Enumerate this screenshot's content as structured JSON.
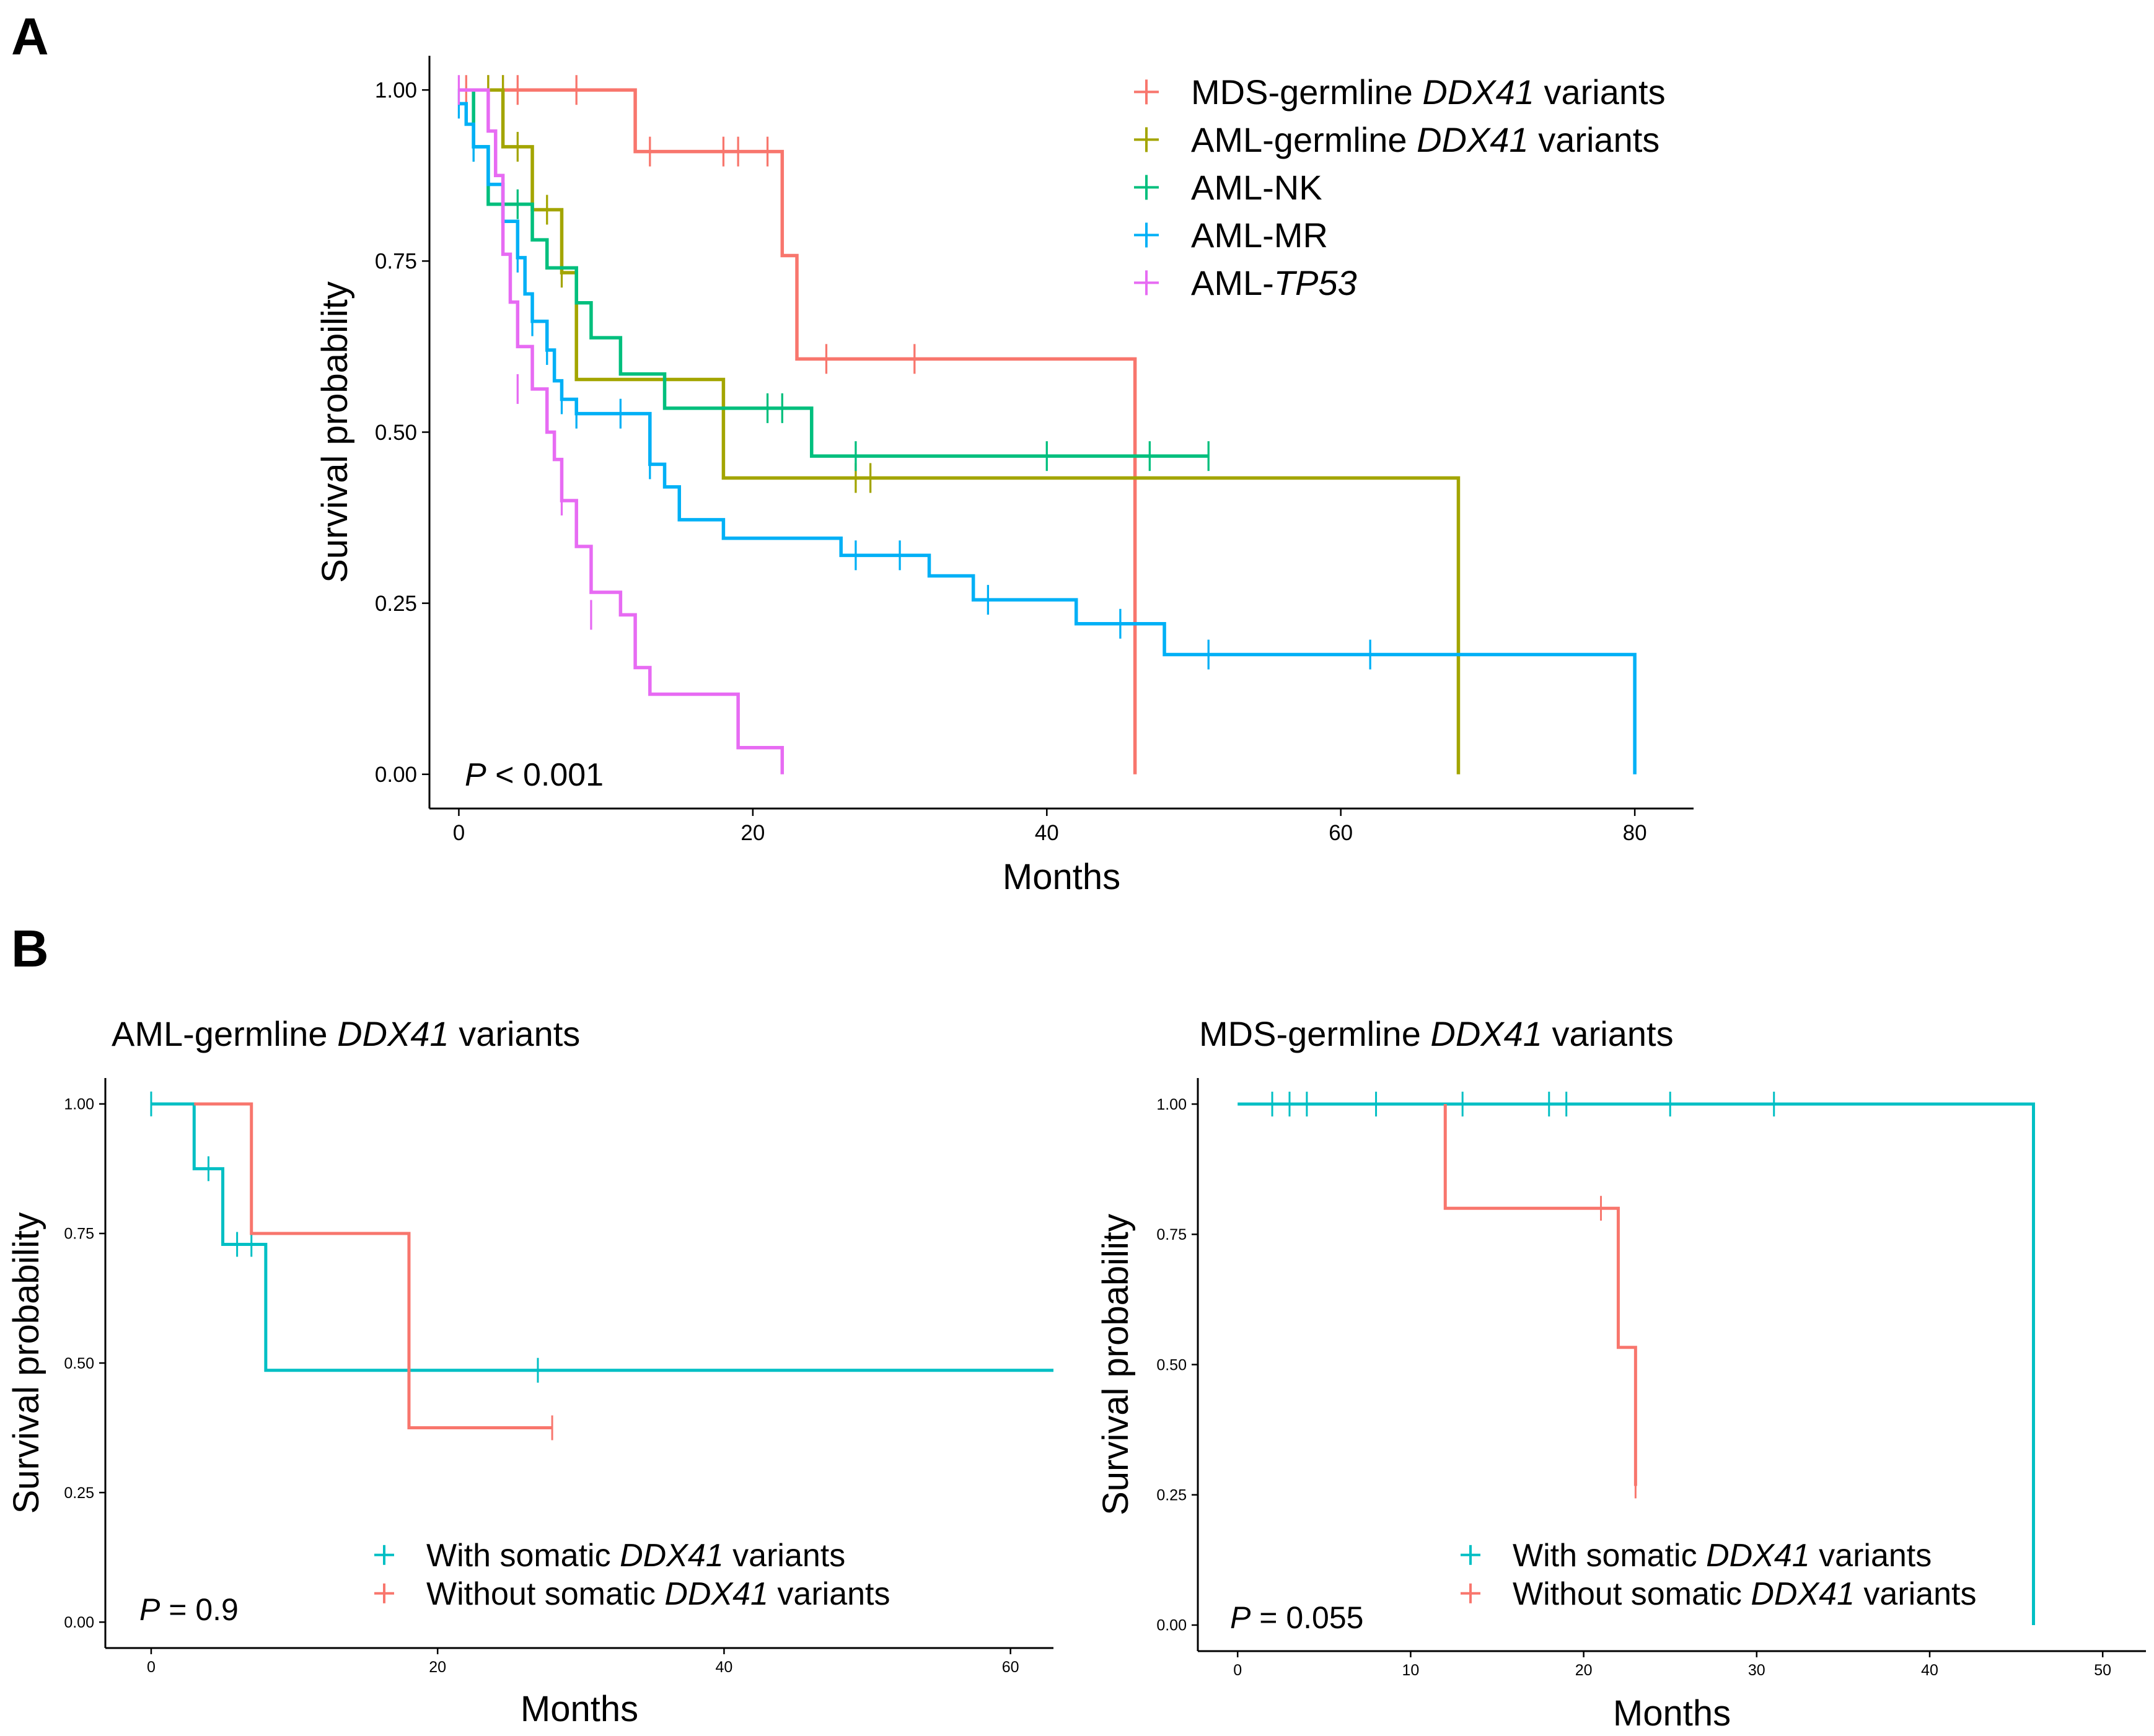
{
  "panel_labels": {
    "a": "A",
    "b": "B"
  },
  "chart_data": [
    {
      "id": "A",
      "type": "line",
      "subtype": "kaplan-meier",
      "title": "",
      "xlabel": "Months",
      "ylabel": "Survival probability",
      "xlim": [
        -2,
        84
      ],
      "ylim": [
        -0.05,
        1.05
      ],
      "xticks": [
        0,
        20,
        40,
        60,
        80
      ],
      "yticks": [
        0.0,
        0.25,
        0.5,
        0.75,
        1.0
      ],
      "xtick_labels": [
        "0",
        "20",
        "40",
        "60",
        "80"
      ],
      "ytick_labels": [
        "0.00",
        "0.25",
        "0.50",
        "0.75",
        "1.00"
      ],
      "grid": false,
      "legend_position": "top-right",
      "pvalue": {
        "label": "P",
        "rest": " < 0.001"
      },
      "series": [
        {
          "name": "MDS-germline DDX41 variants",
          "legend": [
            {
              "t": "MDS-germline "
            },
            {
              "t": "DDX41",
              "i": true
            },
            {
              "t": " variants"
            }
          ],
          "color": "#F8766D",
          "steps": [
            [
              0,
              1.0
            ],
            [
              12,
              0.91
            ],
            [
              22,
              0.758
            ],
            [
              23,
              0.607
            ],
            [
              46,
              0.0
            ]
          ],
          "end": 46,
          "censors": [
            [
              0.5,
              1.0
            ],
            [
              2,
              1.0
            ],
            [
              3,
              1.0
            ],
            [
              4,
              1.0
            ],
            [
              8,
              1.0
            ],
            [
              13,
              0.91
            ],
            [
              18,
              0.91
            ],
            [
              19,
              0.91
            ],
            [
              21,
              0.91
            ],
            [
              25,
              0.607
            ],
            [
              31,
              0.607
            ]
          ]
        },
        {
          "name": "AML-germline DDX41 variants",
          "legend": [
            {
              "t": "AML-germline "
            },
            {
              "t": "DDX41",
              "i": true
            },
            {
              "t": " variants"
            }
          ],
          "color": "#A3A500",
          "steps": [
            [
              0,
              1.0
            ],
            [
              3,
              0.917
            ],
            [
              5,
              0.825
            ],
            [
              7,
              0.733
            ],
            [
              8,
              0.577
            ],
            [
              18,
              0.433
            ],
            [
              68,
              0.0
            ]
          ],
          "end": 68,
          "censors": [
            [
              2,
              1.0
            ],
            [
              3,
              1.0
            ],
            [
              4,
              0.917
            ],
            [
              6,
              0.825
            ],
            [
              7,
              0.733
            ],
            [
              27,
              0.433
            ],
            [
              28,
              0.433
            ]
          ]
        },
        {
          "name": "AML-NK",
          "legend": [
            {
              "t": "AML-NK"
            }
          ],
          "color": "#00BF7D",
          "steps": [
            [
              0,
              1.0
            ],
            [
              1,
              0.917
            ],
            [
              2,
              0.833
            ],
            [
              5,
              0.781
            ],
            [
              6,
              0.74
            ],
            [
              8,
              0.689
            ],
            [
              9,
              0.638
            ],
            [
              11,
              0.585
            ],
            [
              14,
              0.535
            ],
            [
              24,
              0.465
            ]
          ],
          "end": 51,
          "censors": [
            [
              1,
              0.917
            ],
            [
              3,
              0.833
            ],
            [
              4,
              0.833
            ],
            [
              21,
              0.535
            ],
            [
              22,
              0.535
            ],
            [
              27,
              0.465
            ],
            [
              40,
              0.465
            ],
            [
              47,
              0.465
            ],
            [
              51,
              0.465
            ]
          ]
        },
        {
          "name": "AML-MR",
          "legend": [
            {
              "t": "AML-MR"
            }
          ],
          "color": "#00B0F6",
          "steps": [
            [
              0,
              0.98
            ],
            [
              0.5,
              0.95
            ],
            [
              1,
              0.917
            ],
            [
              2,
              0.862
            ],
            [
              3,
              0.808
            ],
            [
              4,
              0.755
            ],
            [
              4.5,
              0.702
            ],
            [
              5,
              0.662
            ],
            [
              6,
              0.62
            ],
            [
              6.5,
              0.575
            ],
            [
              7,
              0.548
            ],
            [
              8,
              0.527
            ],
            [
              13,
              0.453
            ],
            [
              14,
              0.42
            ],
            [
              15,
              0.372
            ],
            [
              18,
              0.345
            ],
            [
              26,
              0.32
            ],
            [
              32,
              0.29
            ],
            [
              35,
              0.255
            ],
            [
              42,
              0.22
            ],
            [
              48,
              0.175
            ],
            [
              80,
              0.0
            ]
          ],
          "end": 80,
          "censors": [
            [
              0,
              0.98
            ],
            [
              1,
              0.917
            ],
            [
              3,
              0.808
            ],
            [
              4,
              0.755
            ],
            [
              5,
              0.662
            ],
            [
              6,
              0.62
            ],
            [
              7,
              0.548
            ],
            [
              8,
              0.527
            ],
            [
              11,
              0.527
            ],
            [
              13,
              0.453
            ],
            [
              27,
              0.32
            ],
            [
              30,
              0.32
            ],
            [
              36,
              0.255
            ],
            [
              45,
              0.22
            ],
            [
              51,
              0.175
            ],
            [
              62,
              0.175
            ]
          ]
        },
        {
          "name": "AML-TP53",
          "legend": [
            {
              "t": "AML-"
            },
            {
              "t": "TP53",
              "i": true
            }
          ],
          "color": "#E76BF3",
          "steps": [
            [
              0,
              1.0
            ],
            [
              2,
              0.94
            ],
            [
              2.5,
              0.875
            ],
            [
              3,
              0.76
            ],
            [
              3.5,
              0.69
            ],
            [
              4,
              0.625
            ],
            [
              5,
              0.563
            ],
            [
              6,
              0.5
            ],
            [
              6.5,
              0.46
            ],
            [
              7,
              0.4
            ],
            [
              8,
              0.333
            ],
            [
              9,
              0.266
            ],
            [
              11,
              0.233
            ],
            [
              12,
              0.156
            ],
            [
              13,
              0.117
            ],
            [
              19,
              0.039
            ],
            [
              22,
              0.0
            ]
          ],
          "end": 22,
          "censors": [
            [
              0,
              1.0
            ],
            [
              4,
              0.563
            ],
            [
              7,
              0.4
            ],
            [
              9,
              0.233
            ]
          ]
        }
      ]
    },
    {
      "id": "B-left",
      "type": "line",
      "subtype": "kaplan-meier",
      "title": "AML-germline DDX41 variants",
      "title_parts": [
        {
          "t": "AML-germline "
        },
        {
          "t": "DDX41",
          "i": true
        },
        {
          "t": " variants"
        }
      ],
      "xlabel": "Months",
      "ylabel": "Survival probability",
      "xlim": [
        -3.2,
        63
      ],
      "ylim": [
        -0.05,
        1.05
      ],
      "xticks": [
        0,
        20,
        40,
        60
      ],
      "yticks": [
        0.0,
        0.25,
        0.5,
        0.75,
        1.0
      ],
      "xtick_labels": [
        "0",
        "20",
        "40",
        "60"
      ],
      "ytick_labels": [
        "0.00",
        "0.25",
        "0.50",
        "0.75",
        "1.00"
      ],
      "grid": false,
      "legend_position": "bottom-center",
      "pvalue": {
        "label": "P",
        "rest": " = 0.9"
      },
      "series": [
        {
          "name": "With somatic DDX41 variants",
          "legend": [
            {
              "t": "With somatic "
            },
            {
              "t": "DDX41",
              "i": true
            },
            {
              "t": " variants"
            }
          ],
          "color": "#00BFC4",
          "steps": [
            [
              0,
              1.0
            ],
            [
              3,
              0.875
            ],
            [
              5,
              0.729
            ],
            [
              8,
              0.486
            ]
          ],
          "end": 63,
          "censors": [
            [
              0,
              1.0
            ],
            [
              4,
              0.875
            ],
            [
              6,
              0.729
            ],
            [
              7,
              0.729
            ],
            [
              27,
              0.486
            ]
          ]
        },
        {
          "name": "Without somatic DDX41 variants",
          "legend": [
            {
              "t": "Without somatic "
            },
            {
              "t": "DDX41",
              "i": true
            },
            {
              "t": " variants"
            }
          ],
          "color": "#F8766D",
          "steps": [
            [
              3,
              1.0
            ],
            [
              7,
              0.75
            ],
            [
              18,
              0.375
            ]
          ],
          "end": 28,
          "censors": [
            [
              28,
              0.375
            ]
          ]
        }
      ]
    },
    {
      "id": "B-right",
      "type": "line",
      "subtype": "kaplan-meier",
      "title": "MDS-germline DDX41 variants",
      "title_parts": [
        {
          "t": "MDS-germline "
        },
        {
          "t": "DDX41",
          "i": true
        },
        {
          "t": " variants"
        }
      ],
      "xlabel": "Months",
      "ylabel": "Survival probability",
      "xlim": [
        -2.3,
        52.5
      ],
      "ylim": [
        -0.05,
        1.05
      ],
      "xticks": [
        0,
        10,
        20,
        30,
        40,
        50
      ],
      "yticks": [
        0.0,
        0.25,
        0.5,
        0.75,
        1.0
      ],
      "xtick_labels": [
        "0",
        "10",
        "20",
        "30",
        "40",
        "50"
      ],
      "ytick_labels": [
        "0.00",
        "0.25",
        "0.50",
        "0.75",
        "1.00"
      ],
      "grid": false,
      "legend_position": "bottom-center",
      "pvalue": {
        "label": "P",
        "rest": " = 0.055"
      },
      "series": [
        {
          "name": "With somatic DDX41 variants",
          "legend": [
            {
              "t": "With somatic "
            },
            {
              "t": "DDX41",
              "i": true
            },
            {
              "t": " variants"
            }
          ],
          "color": "#00BFC4",
          "steps": [
            [
              0,
              1.0
            ],
            [
              46,
              0.0
            ]
          ],
          "end": 46,
          "censors": [
            [
              2,
              1.0
            ],
            [
              3,
              1.0
            ],
            [
              4,
              1.0
            ],
            [
              8,
              1.0
            ],
            [
              13,
              1.0
            ],
            [
              18,
              1.0
            ],
            [
              19,
              1.0
            ],
            [
              25,
              1.0
            ],
            [
              31,
              1.0
            ]
          ]
        },
        {
          "name": "Without somatic DDX41 variants",
          "legend": [
            {
              "t": "Without somatic "
            },
            {
              "t": "DDX41",
              "i": true
            },
            {
              "t": " variants"
            }
          ],
          "color": "#F8766D",
          "steps": [
            [
              12,
              1.0
            ],
            [
              12,
              0.8
            ],
            [
              22,
              0.533
            ],
            [
              23,
              0.267
            ]
          ],
          "end": 23,
          "censors": [
            [
              21,
              0.8
            ],
            [
              23,
              0.267
            ]
          ]
        }
      ]
    }
  ]
}
